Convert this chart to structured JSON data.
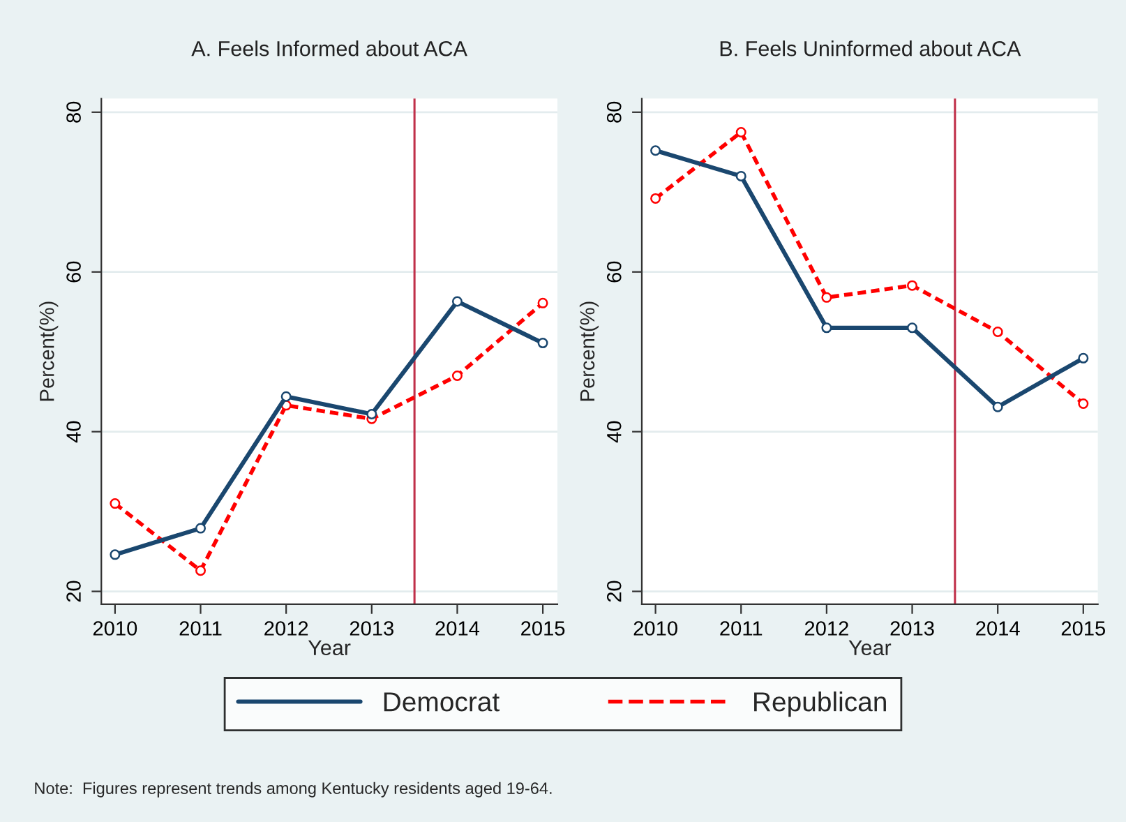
{
  "chart_data": [
    {
      "type": "line",
      "title": "A. Feels Informed about ACA",
      "xlabel": "Year",
      "ylabel": "Percent(%)",
      "x": [
        2010,
        2011,
        2012,
        2013,
        2014,
        2015
      ],
      "xlim": [
        2009.84,
        2015.17
      ],
      "xticks": [
        2010,
        2011,
        2012,
        2013,
        2014,
        2015
      ],
      "ylim": [
        18.4,
        81.7
      ],
      "yticks": [
        20,
        40,
        60,
        80
      ],
      "grid": "y",
      "marker": "circle",
      "legend": "bottom",
      "series": [
        {
          "name": "Democrat",
          "color": "#1a476f",
          "line_style": "solid",
          "values": [
            24.6,
            27.9,
            44.4,
            42.2,
            56.3,
            51.1
          ]
        },
        {
          "name": "Republican",
          "color": "#ff0000",
          "line_style": "dashed",
          "values": [
            31.0,
            22.6,
            43.3,
            41.6,
            47.0,
            56.1
          ]
        }
      ],
      "ref_lines": [
        {
          "axis": "x",
          "value": 2013.5,
          "color": "#c0304a"
        }
      ],
      "annotations": [
        "Note:  Figures represent trends among Kentucky residents aged 19-64."
      ]
    },
    {
      "type": "line",
      "title": "B. Feels Uninformed about ACA",
      "xlabel": "Year",
      "ylabel": "Percent(%)",
      "x": [
        2010,
        2011,
        2012,
        2013,
        2014,
        2015
      ],
      "xlim": [
        2009.84,
        2015.17
      ],
      "xticks": [
        2010,
        2011,
        2012,
        2013,
        2014,
        2015
      ],
      "ylim": [
        18.4,
        81.7
      ],
      "yticks": [
        20,
        40,
        60,
        80
      ],
      "grid": "y",
      "marker": "circle",
      "series": [
        {
          "color": "#1a476f",
          "line_style": "solid",
          "values": [
            75.2,
            72.0,
            53.0,
            53.0,
            43.1,
            49.2
          ]
        },
        {
          "color": "#ff0000",
          "line_style": "dashed",
          "values": [
            69.2,
            77.5,
            56.8,
            58.3,
            52.5,
            43.5
          ]
        }
      ],
      "ref_lines": [
        {
          "axis": "x",
          "value": 2013.5,
          "color": "#c0304a"
        }
      ]
    }
  ]
}
